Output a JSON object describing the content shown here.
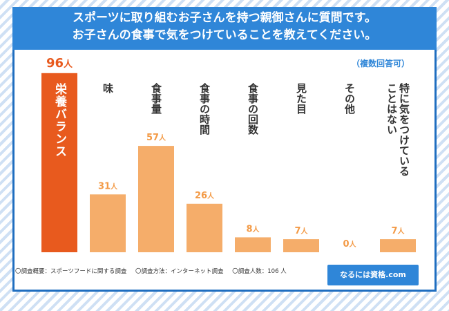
{
  "title_lines": [
    "スポーツに取り組むお子さんを持つ親御さんに質問です。",
    "お子さんの食事で気をつけていることを教えてください。"
  ],
  "note": "（複数回答可）",
  "colors": {
    "highlight": "#e85a1e",
    "bar": "#f5ad6a",
    "value_highlight": "#e85a1e",
    "value": "#f39a46",
    "category_text": "#333333",
    "brand": "#2f86d8"
  },
  "chart_data": {
    "type": "bar",
    "title": "お子さんの食事で気をつけていること",
    "unit": "人",
    "categories": [
      "栄養バランス",
      "味",
      "食事量",
      "食事の時間",
      "食事の回数",
      "見た目",
      "その他",
      "特に気をつけていることはない"
    ],
    "category_columns": [
      [
        "栄養バランス"
      ],
      [
        "味"
      ],
      [
        "食事量"
      ],
      [
        "食事の時間"
      ],
      [
        "食事の回数"
      ],
      [
        "見た目"
      ],
      [
        "その他"
      ],
      [
        "ことはない",
        "特に気をつけている"
      ]
    ],
    "values": [
      96,
      31,
      57,
      26,
      8,
      7,
      0,
      7
    ],
    "value_labels": [
      "96",
      "31",
      "57",
      "26",
      "8",
      "7",
      "0",
      "7"
    ],
    "highlight_index": 0,
    "ylim": [
      0,
      96
    ]
  },
  "footer": {
    "items": [
      "〇調査概要：スポーツフードに関する調査",
      "〇調査方法：インターネット調査",
      "〇調査人数：106 人"
    ],
    "brand": "なるには資格.com"
  }
}
